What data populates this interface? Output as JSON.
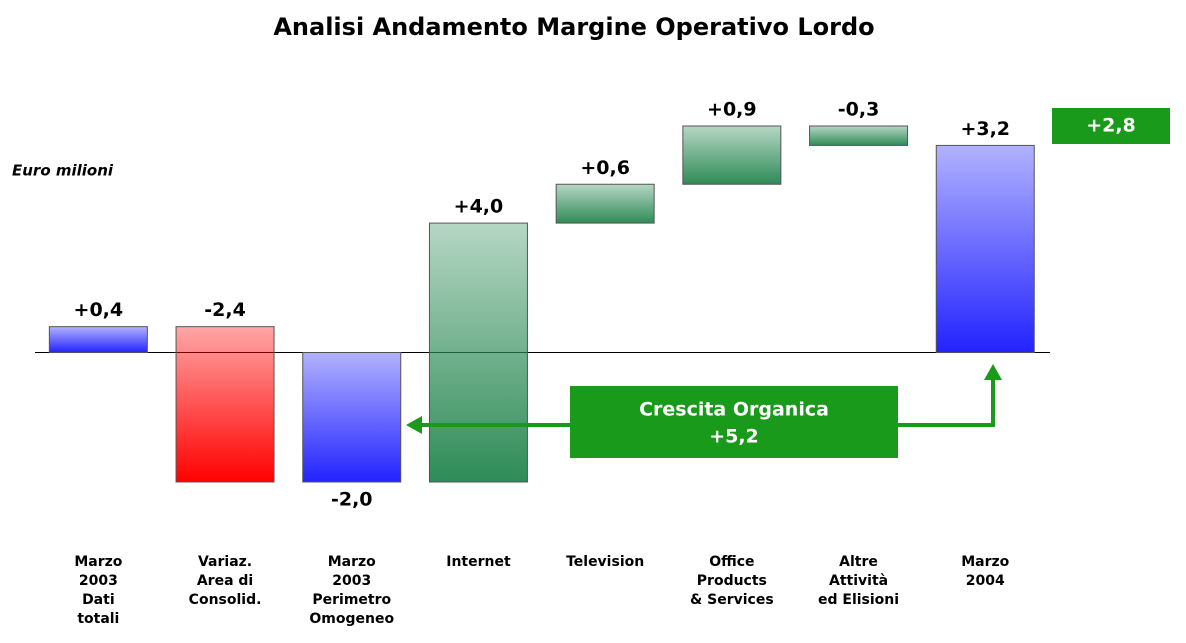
{
  "chart_data": {
    "type": "waterfall",
    "title": "Analisi Andamento Margine Operativo Lordo",
    "unit_label": "Euro milioni",
    "categories": [
      "Marzo\n2003\nDati\ntotali",
      "Variaz.\nArea di\nConsolid.",
      "Marzo\n2003\nPerimetro\nOmogeneo",
      "Internet",
      "Television",
      "Office\nProducts\n& Services",
      "Altre\nAttività\ned Elisioni",
      "Marzo\n2004"
    ],
    "values": [
      0.4,
      -2.4,
      -2.0,
      4.0,
      0.6,
      0.9,
      -0.3,
      3.2
    ],
    "value_labels": [
      "+0,4",
      "-2,4",
      "-2,0",
      "+4,0",
      "+0,6",
      "+0,9",
      "-0,3",
      "+3,2"
    ],
    "totals": [
      2,
      7
    ],
    "colors": [
      "#2222ff",
      "#ff0000",
      "#2222ff",
      "#2e8b57",
      "#2e8b57",
      "#2e8b57",
      "#2e8b57",
      "#2222ff"
    ],
    "annotations": {
      "change_label": "+2,8",
      "organic_title": "Crescita Organica",
      "organic_value": "+5,2",
      "color": "#1a9a1a"
    }
  }
}
